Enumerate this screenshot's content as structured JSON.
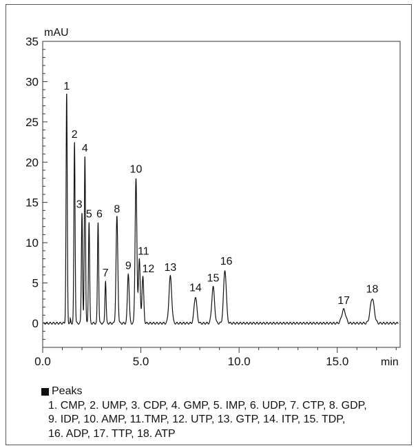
{
  "chart_data": {
    "type": "line",
    "xlabel": "min",
    "ylabel": "mAU",
    "xlim": [
      0,
      18.2
    ],
    "ylim": [
      -3,
      35
    ],
    "xticks": [
      0.0,
      5.0,
      10.0,
      15.0
    ],
    "xtick_labels": [
      "0.0",
      "5.0",
      "10.0",
      "15.0"
    ],
    "yticks": [
      0,
      5,
      10,
      15,
      20,
      25,
      30,
      35
    ],
    "ytick_labels": [
      "0",
      "5",
      "10",
      "15",
      "20",
      "25",
      "30",
      "35"
    ],
    "grid": false,
    "series": [
      {
        "peaks": [
          {
            "label": "1",
            "t": 1.22,
            "h": 28.5
          },
          {
            "label": "2",
            "t": 1.62,
            "h": 22.5
          },
          {
            "label": "3",
            "t": 2.0,
            "h": 13.8
          },
          {
            "label": "4",
            "t": 2.15,
            "h": 20.8
          },
          {
            "label": "5",
            "t": 2.36,
            "h": 12.6
          },
          {
            "label": "6",
            "t": 2.82,
            "h": 12.6
          },
          {
            "label": "7",
            "t": 3.2,
            "h": 5.3
          },
          {
            "label": "8",
            "t": 3.78,
            "h": 13.2
          },
          {
            "label": "9",
            "t": 4.36,
            "h": 6.2
          },
          {
            "label": "10",
            "t": 4.75,
            "h": 18.0
          },
          {
            "label": "11",
            "t": 4.92,
            "h": 8.0
          },
          {
            "label": "12",
            "t": 5.1,
            "h": 5.8
          },
          {
            "label": "13",
            "t": 6.5,
            "h": 5.8
          },
          {
            "label": "14",
            "t": 7.78,
            "h": 3.3
          },
          {
            "label": "15",
            "t": 8.68,
            "h": 4.5
          },
          {
            "label": "16",
            "t": 9.28,
            "h": 6.6
          },
          {
            "label": "17",
            "t": 15.33,
            "h": 1.7
          },
          {
            "label": "18",
            "t": 16.78,
            "h": 3.1
          }
        ]
      }
    ]
  },
  "legend": {
    "title": "Peaks",
    "lines": [
      "1. CMP, 2. UMP, 3. CDP, 4. GMP, 5. IMP, 6. UDP, 7. CTP, 8. GDP,",
      "9. IDP, 10. AMP, 11.TMP, 12. UTP, 13. GTP, 14. ITP, 15. TDP,",
      "16. ADP, 17. TTP, 18. ATP"
    ]
  }
}
